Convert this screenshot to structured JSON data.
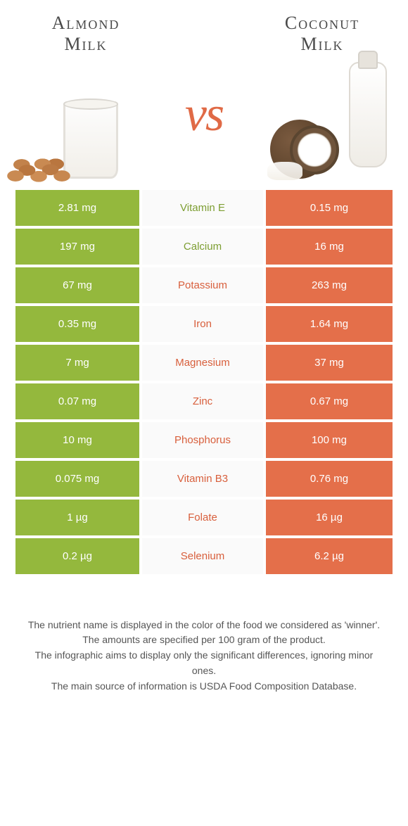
{
  "colors": {
    "left_bg": "#94b83d",
    "right_bg": "#e46f4a",
    "mid_bg": "#fafafa",
    "label_left": "#7d9e32",
    "label_right": "#d85f3c",
    "vs": "#e06a46"
  },
  "left": {
    "title_line1": "Almond",
    "title_line2": "Milk"
  },
  "right": {
    "title_line1": "Coconut",
    "title_line2": "Milk"
  },
  "vs_text": "vs",
  "rows": [
    {
      "label": "Vitamin E",
      "winner": "left",
      "left": "2.81 mg",
      "right": "0.15 mg"
    },
    {
      "label": "Calcium",
      "winner": "left",
      "left": "197 mg",
      "right": "16 mg"
    },
    {
      "label": "Potassium",
      "winner": "right",
      "left": "67 mg",
      "right": "263 mg"
    },
    {
      "label": "Iron",
      "winner": "right",
      "left": "0.35 mg",
      "right": "1.64 mg"
    },
    {
      "label": "Magnesium",
      "winner": "right",
      "left": "7 mg",
      "right": "37 mg"
    },
    {
      "label": "Zinc",
      "winner": "right",
      "left": "0.07 mg",
      "right": "0.67 mg"
    },
    {
      "label": "Phosphorus",
      "winner": "right",
      "left": "10 mg",
      "right": "100 mg"
    },
    {
      "label": "Vitamin B3",
      "winner": "right",
      "left": "0.075 mg",
      "right": "0.76 mg"
    },
    {
      "label": "Folate",
      "winner": "right",
      "left": "1 µg",
      "right": "16 µg"
    },
    {
      "label": "Selenium",
      "winner": "right",
      "left": "0.2 µg",
      "right": "6.2 µg"
    }
  ],
  "footer": {
    "l1": "The nutrient name is displayed in the color of the food we considered as 'winner'.",
    "l2": "The amounts are specified per 100 gram of the product.",
    "l3": "The infographic aims to display only the significant differences, ignoring minor ones.",
    "l4": "The main source of information is USDA Food Composition Database."
  }
}
